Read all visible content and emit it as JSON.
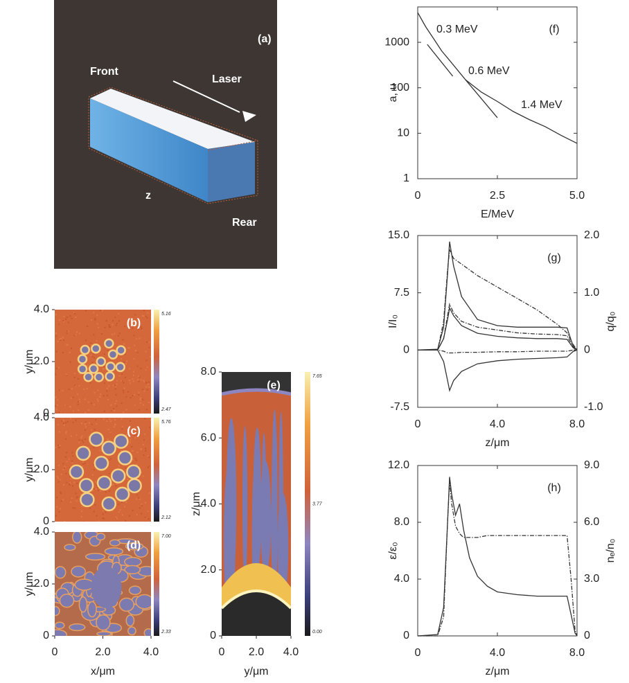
{
  "chart_data": [
    {
      "type": "image",
      "panel_label": "(a)",
      "annotations": [
        "Front",
        "Laser",
        "z",
        "Rear"
      ]
    },
    {
      "type": "heatmap",
      "panel_label": "(b)",
      "xlim": [
        0,
        4
      ],
      "ylim": [
        0,
        4
      ],
      "yticks": [
        0,
        {
          "value": 2,
          "label": "2.0"
        },
        {
          "value": 4,
          "label": "4.0"
        }
      ],
      "ylabel": "y/μm",
      "colorbar_labels": [
        "5.16",
        "2.47"
      ]
    },
    {
      "type": "heatmap",
      "panel_label": "(c)",
      "xlim": [
        0,
        4
      ],
      "ylim": [
        0,
        4
      ],
      "yticks": [
        0,
        {
          "value": 2,
          "label": "2.0"
        },
        {
          "value": 4,
          "label": "4.0"
        }
      ],
      "ylabel": "y/μm",
      "colorbar_labels": [
        "5.76",
        "2.12"
      ]
    },
    {
      "type": "heatmap",
      "panel_label": "(d)",
      "xlim": [
        0,
        4
      ],
      "ylim": [
        0,
        4
      ],
      "xticks": [
        0,
        {
          "value": 2,
          "label": "2.0"
        },
        {
          "value": 4,
          "label": "4.0"
        }
      ],
      "yticks": [
        0,
        {
          "value": 2,
          "label": "2.0"
        },
        {
          "value": 4,
          "label": "4.0"
        }
      ],
      "xlabel": "x/μm",
      "ylabel": "y/μm",
      "colorbar_labels": [
        "7.00",
        "2.33"
      ]
    },
    {
      "type": "heatmap",
      "panel_label": "(e)",
      "xlim": [
        0,
        4
      ],
      "ylim": [
        0,
        8
      ],
      "xticks": [
        0,
        {
          "value": 2,
          "label": "2.0"
        },
        {
          "value": 4,
          "label": "4.0"
        }
      ],
      "yticks": [
        0,
        {
          "value": 2,
          "label": "2.0"
        },
        {
          "value": 4,
          "label": "4.0"
        },
        {
          "value": 6,
          "label": "6.0"
        },
        {
          "value": 8,
          "label": "8.0"
        }
      ],
      "xlabel": "y/μm",
      "ylabel": "z/μm",
      "colorbar_labels": [
        "7.65",
        "3.77",
        "0.00"
      ]
    },
    {
      "type": "line",
      "panel_label": "(f)",
      "log_y": true,
      "xlim": [
        0,
        5
      ],
      "ylim": [
        1,
        6000
      ],
      "xticks": [
        0,
        2.5,
        {
          "value": 5,
          "label": "5.0"
        }
      ],
      "yticks": [
        1,
        10,
        100,
        1000
      ],
      "xlabel": "E/MeV",
      "ylabel": "a, u",
      "annotations": [
        "0.3 MeV",
        "0.6 MeV",
        "1.4 MeV"
      ],
      "series": [
        {
          "color": "#333333",
          "dash": "solid",
          "x": [
            0,
            0.25,
            0.5,
            0.75,
            1,
            1.5,
            2,
            2.5,
            3,
            3.5,
            4,
            4.5,
            5
          ],
          "values": [
            4500,
            2200,
            1200,
            650,
            400,
            150,
            80,
            50,
            30,
            20,
            14,
            9,
            6
          ]
        },
        {
          "color": "#333333",
          "dash": "solid",
          "x": [
            0.3,
            1.1
          ],
          "values": [
            900,
            180
          ]
        },
        {
          "color": "#333333",
          "dash": "solid",
          "x": [
            1.5,
            2.5
          ],
          "values": [
            150,
            22
          ]
        }
      ]
    },
    {
      "type": "line",
      "panel_label": "(g)",
      "xlim": [
        0,
        8
      ],
      "ylim": [
        -7.5,
        15
      ],
      "y2lim": [
        -1,
        2
      ],
      "xticks": [
        0,
        {
          "value": 4,
          "label": "4.0"
        },
        {
          "value": 8,
          "label": "8.0"
        }
      ],
      "yticks": [
        -7.5,
        0,
        7.5,
        {
          "value": 15,
          "label": "15.0"
        }
      ],
      "y2ticks": [
        {
          "value": -1,
          "label": "-1.0"
        },
        0,
        {
          "value": 1,
          "label": "1.0"
        },
        {
          "value": 2,
          "label": "2.0"
        }
      ],
      "xlabel": "z/μm",
      "ylabel": "I/I₀",
      "y2label": "q/q₀",
      "x": [
        0,
        1,
        1.3,
        1.5,
        1.6,
        1.8,
        2.2,
        3,
        4,
        5,
        6,
        7,
        7.5,
        7.8,
        8
      ],
      "series": [
        {
          "color": "#333333",
          "dash": "solid",
          "values": [
            0,
            0.1,
            3,
            10,
            14.2,
            11,
            7,
            4,
            3.2,
            3,
            3,
            3,
            2.9,
            0.5,
            0
          ]
        },
        {
          "color": "#333333",
          "dash": "dash-dot",
          "axis": "y2",
          "values": [
            0,
            0,
            0.5,
            1.4,
            1.75,
            1.6,
            1.5,
            1.3,
            1.1,
            0.9,
            0.7,
            0.45,
            0.3,
            0.1,
            0
          ]
        },
        {
          "color": "#333333",
          "dash": "solid",
          "values": [
            0,
            0,
            1.5,
            4,
            5.5,
            4.5,
            3.2,
            2.2,
            1.8,
            1.6,
            1.5,
            1.5,
            1.4,
            0.3,
            0
          ]
        },
        {
          "color": "#333333",
          "dash": "dash-dot",
          "axis": "y2",
          "values": [
            0,
            0,
            0.2,
            0.6,
            0.8,
            0.65,
            0.5,
            0.4,
            0.35,
            0.3,
            0.28,
            0.27,
            0.25,
            0.05,
            0
          ]
        },
        {
          "color": "#333333",
          "dash": "solid",
          "values": [
            0,
            0,
            -1.5,
            -4,
            -5.3,
            -4,
            -2.8,
            -1.8,
            -1.4,
            -1.2,
            -1.1,
            -1,
            -0.9,
            -0.2,
            0
          ]
        },
        {
          "color": "#333333",
          "dash": "dash-dot",
          "axis": "y2",
          "values": [
            0,
            0,
            -0.02,
            -0.05,
            -0.05,
            -0.05,
            -0.04,
            -0.04,
            -0.03,
            -0.03,
            -0.02,
            -0.02,
            -0.02,
            0,
            0
          ]
        }
      ]
    },
    {
      "type": "line",
      "panel_label": "(h)",
      "xlim": [
        0,
        8
      ],
      "ylim": [
        0,
        12
      ],
      "y2lim": [
        0,
        9
      ],
      "xticks": [
        0,
        {
          "value": 4,
          "label": "4.0"
        },
        {
          "value": 8,
          "label": "8.0"
        }
      ],
      "yticks": [
        0,
        {
          "value": 4,
          "label": "4.0"
        },
        {
          "value": 8,
          "label": "8.0"
        },
        {
          "value": 12,
          "label": "12.0"
        }
      ],
      "y2ticks": [
        0,
        {
          "value": 3,
          "label": "3.0"
        },
        {
          "value": 6,
          "label": "6.0"
        },
        {
          "value": 9,
          "label": "9.0"
        }
      ],
      "xlabel": "z/μm",
      "ylabel": "ε/ε₀",
      "y2label": "nₑ/n₀",
      "x": [
        0,
        1,
        1.3,
        1.5,
        1.6,
        1.7,
        1.9,
        2.1,
        2.3,
        2.6,
        3,
        3.5,
        4,
        5,
        6,
        7,
        7.5,
        7.7,
        7.9,
        8
      ],
      "series": [
        {
          "color": "#333333",
          "dash": "solid",
          "values": [
            0,
            0.1,
            2,
            8,
            11.2,
            10,
            8.5,
            9.3,
            7.5,
            5.5,
            4.2,
            3.5,
            3.1,
            2.9,
            2.8,
            2.8,
            2.8,
            1.5,
            0.2,
            0
          ]
        },
        {
          "color": "#333333",
          "dash": "dash-dot",
          "axis": "y2",
          "values": [
            0,
            0,
            1,
            6,
            8.2,
            7,
            5.8,
            5.4,
            5.2,
            5.2,
            5.2,
            5.3,
            5.3,
            5.3,
            5.3,
            5.3,
            5.3,
            3,
            0.3,
            0
          ]
        }
      ]
    }
  ]
}
